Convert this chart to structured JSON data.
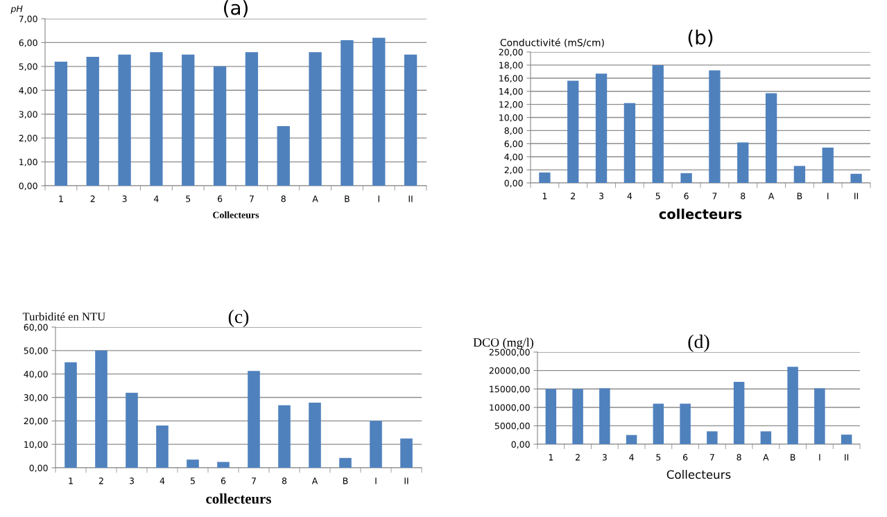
{
  "chart_data": [
    {
      "type": "bar",
      "title": "(a)",
      "ylabel": "pH",
      "xlabel": "Collecteurs",
      "categories": [
        "1",
        "2",
        "3",
        "4",
        "5",
        "6",
        "7",
        "8",
        "A",
        "B",
        "I",
        "II"
      ],
      "color": "#4f81bd",
      "grid": "y",
      "values": [
        5.2,
        5.4,
        5.5,
        5.6,
        5.5,
        5.0,
        5.6,
        2.5,
        5.6,
        6.1,
        6.2,
        5.5
      ],
      "ylim": [
        0,
        7
      ],
      "yticks": [
        {
          "value": 0,
          "label": "0,00"
        },
        {
          "value": 1,
          "label": "1,00"
        },
        {
          "value": 2,
          "label": "2,00"
        },
        {
          "value": 3,
          "label": "3,00"
        },
        {
          "value": 4,
          "label": "4,00"
        },
        {
          "value": 5,
          "label": "5,00"
        },
        {
          "value": 6,
          "label": "6,00"
        },
        {
          "value": 7,
          "label": "7,00"
        }
      ]
    },
    {
      "type": "bar",
      "title": "(b)",
      "ylabel": "Conductivité (mS/cm)",
      "xlabel": "collecteurs",
      "categories": [
        "1",
        "2",
        "3",
        "4",
        "5",
        "6",
        "7",
        "8",
        "A",
        "B",
        "I",
        "II"
      ],
      "color": "#4f81bd",
      "grid": "y",
      "values": [
        1.6,
        15.6,
        16.7,
        12.2,
        18.0,
        1.5,
        17.2,
        6.2,
        13.7,
        2.6,
        5.4,
        1.4
      ],
      "ylim": [
        0,
        20
      ],
      "yticks": [
        {
          "value": 0,
          "label": "0,00"
        },
        {
          "value": 2,
          "label": "2,00"
        },
        {
          "value": 4,
          "label": "4,00"
        },
        {
          "value": 6,
          "label": "6,00"
        },
        {
          "value": 8,
          "label": "8,00"
        },
        {
          "value": 10,
          "label": "10,00"
        },
        {
          "value": 12,
          "label": "12,00"
        },
        {
          "value": 14,
          "label": "14,00"
        },
        {
          "value": 16,
          "label": "16,00"
        },
        {
          "value": 18,
          "label": "18,00"
        },
        {
          "value": 20,
          "label": "20,00"
        }
      ]
    },
    {
      "type": "bar",
      "title": "(c)",
      "ylabel": "Turbidité en NTU",
      "xlabel": "collecteurs",
      "categories": [
        "1",
        "2",
        "3",
        "4",
        "5",
        "6",
        "7",
        "8",
        "A",
        "B",
        "I",
        "II"
      ],
      "color": "#4f81bd",
      "grid": "y",
      "values": [
        45,
        50,
        32,
        18,
        3.5,
        2.5,
        41.3,
        26.7,
        27.8,
        4.2,
        20,
        12.5
      ],
      "ylim": [
        0,
        60
      ],
      "yticks": [
        {
          "value": 0,
          "label": "0,00"
        },
        {
          "value": 10,
          "label": "10,00"
        },
        {
          "value": 20,
          "label": "20,00"
        },
        {
          "value": 30,
          "label": "30,00"
        },
        {
          "value": 40,
          "label": "40,00"
        },
        {
          "value": 50,
          "label": "50,00"
        },
        {
          "value": 60,
          "label": "60,00"
        }
      ]
    },
    {
      "type": "bar",
      "title": "(d)",
      "ylabel": "DCO (mg/l)",
      "xlabel": "Collecteurs",
      "categories": [
        "1",
        "2",
        "3",
        "4",
        "5",
        "6",
        "7",
        "8",
        "A",
        "B",
        "I",
        "II"
      ],
      "color": "#4f81bd",
      "grid": "y",
      "values": [
        15000,
        15000,
        15200,
        2500,
        11000,
        11000,
        3500,
        16900,
        3500,
        21000,
        15200,
        2600
      ],
      "ylim": [
        0,
        25000
      ],
      "yticks": [
        {
          "value": 0,
          "label": "0,00"
        },
        {
          "value": 5000,
          "label": "5000,00"
        },
        {
          "value": 10000,
          "label": "10000,00"
        },
        {
          "value": 15000,
          "label": "15000,00"
        },
        {
          "value": 20000,
          "label": "20000,00"
        },
        {
          "value": 25000,
          "label": "25000,00"
        }
      ]
    }
  ]
}
